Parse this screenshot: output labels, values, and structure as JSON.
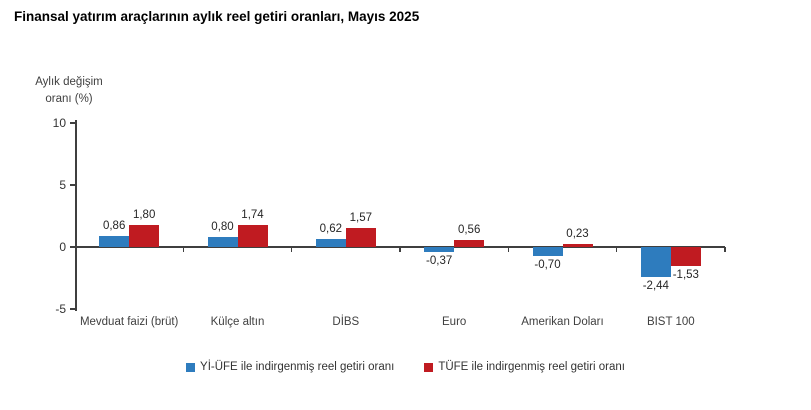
{
  "chart_data": {
    "type": "bar",
    "title": "Finansal yatırım araçlarının aylık reel getiri oranları, Mayıs 2025",
    "y_axis_label": "Aylık değişim\noranı (%)",
    "categories": [
      "Mevduat faizi (brüt)",
      "Külçe altın",
      "DİBS",
      "Euro",
      "Amerikan Doları",
      "BIST 100"
    ],
    "series": [
      {
        "name": "Yİ-ÜFE ile indirgenmiş reel getiri oranı",
        "color": "#2E7CBE",
        "values": [
          0.86,
          0.8,
          0.62,
          -0.37,
          -0.7,
          -2.44
        ],
        "value_labels": [
          "0,86",
          "0,80",
          "0,62",
          "-0,37",
          "-0,70",
          "-2,44"
        ]
      },
      {
        "name": "TÜFE ile indirgenmiş reel getiri oranı",
        "color": "#C01B21",
        "values": [
          1.8,
          1.74,
          1.57,
          0.56,
          0.23,
          -1.53
        ],
        "value_labels": [
          "1,80",
          "1,74",
          "1,57",
          "0,56",
          "0,23",
          "-1,53"
        ]
      }
    ],
    "yticks": [
      10,
      5,
      0,
      -5
    ],
    "ylim": [
      -5,
      10
    ],
    "grid": false,
    "legend_position": "bottom",
    "axis_color": "#3f3f3f",
    "background_color": "#ffffff"
  }
}
